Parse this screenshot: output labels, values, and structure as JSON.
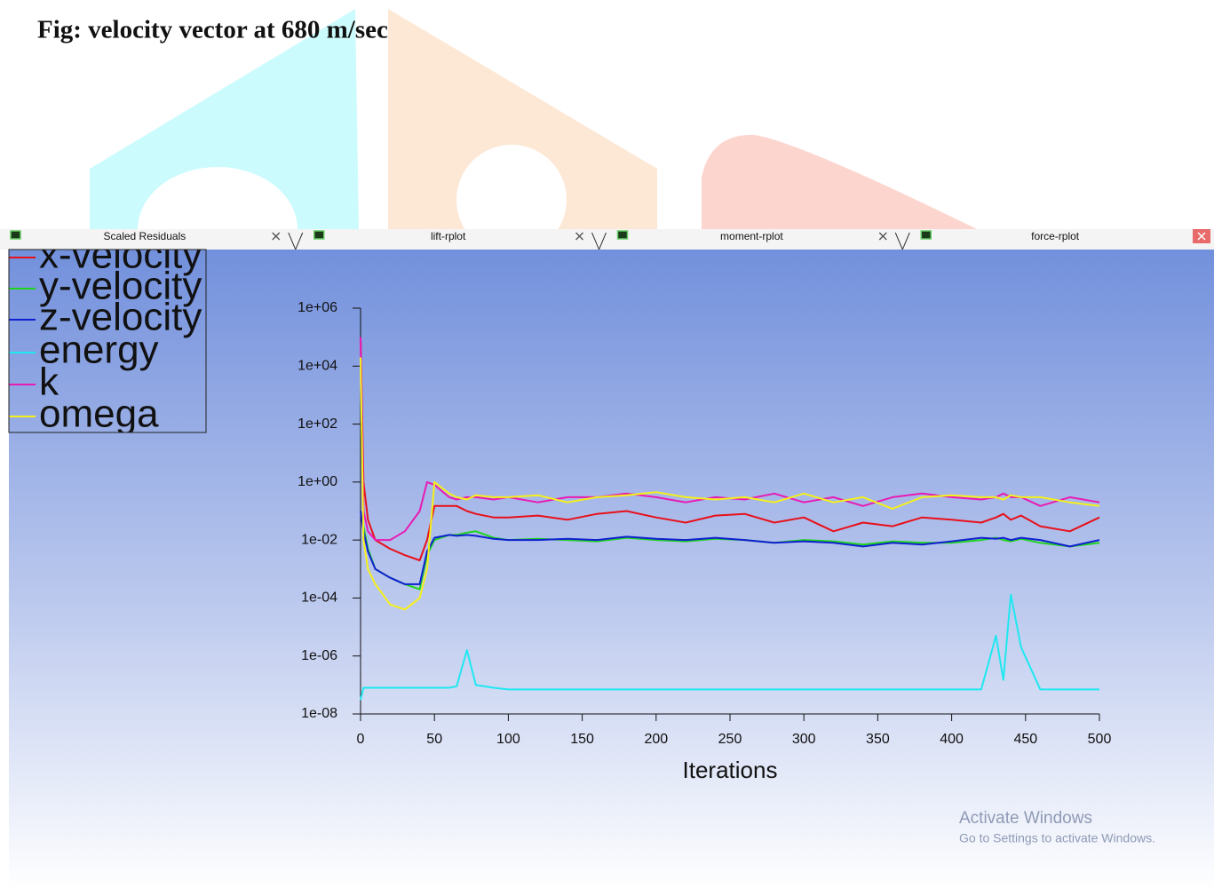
{
  "caption": "Fig: velocity vector at 680 m/sec",
  "tabs": [
    "Scaled Residuals",
    "lift-rplot",
    "moment-rplot",
    "force-rplot"
  ],
  "watermark": {
    "title": "Activate Windows",
    "subtitle": "Go to Settings to activate Windows."
  },
  "chart_data": {
    "type": "line",
    "x_label": "Iterations",
    "ylog": true,
    "grid": false,
    "xlim": [
      0,
      500
    ],
    "xticks": [
      0,
      50,
      100,
      150,
      200,
      250,
      300,
      350,
      400,
      450,
      500
    ],
    "ylim": [
      1e-08,
      1000000
    ],
    "yticks": [
      {
        "value": 1e-08,
        "label": "1e-08"
      },
      {
        "value": 1e-06,
        "label": "1e-06"
      },
      {
        "value": 0.0001,
        "label": "1e-04"
      },
      {
        "value": 0.01,
        "label": "1e-02"
      },
      {
        "value": 1,
        "label": "1e+00"
      },
      {
        "value": 100,
        "label": "1e+02"
      },
      {
        "value": 10000,
        "label": "1e+04"
      },
      {
        "value": 1000000,
        "label": "1e+06"
      }
    ],
    "x": [
      0,
      2,
      5,
      10,
      20,
      30,
      40,
      45,
      50,
      60,
      65,
      72,
      78,
      90,
      100,
      120,
      140,
      160,
      180,
      200,
      220,
      240,
      260,
      280,
      300,
      320,
      340,
      360,
      380,
      400,
      420,
      430,
      435,
      440,
      447,
      460,
      480,
      500
    ],
    "series": [
      {
        "name": "x-velocity",
        "color": "#e8101a",
        "values": [
          100000,
          1,
          0.05,
          0.01,
          0.005,
          0.003,
          0.002,
          0.01,
          0.15,
          0.15,
          0.15,
          0.1,
          0.08,
          0.06,
          0.06,
          0.07,
          0.05,
          0.08,
          0.1,
          0.06,
          0.04,
          0.07,
          0.08,
          0.04,
          0.06,
          0.02,
          0.04,
          0.03,
          0.06,
          0.05,
          0.04,
          0.06,
          0.08,
          0.05,
          0.07,
          0.03,
          0.02,
          0.06
        ]
      },
      {
        "name": "y-velocity",
        "color": "#1ed41e",
        "values": [
          0.1,
          0.03,
          0.005,
          0.001,
          0.0005,
          0.0003,
          0.0002,
          0.003,
          0.01,
          0.015,
          0.015,
          0.018,
          0.02,
          0.012,
          0.01,
          0.011,
          0.01,
          0.009,
          0.012,
          0.01,
          0.009,
          0.011,
          0.01,
          0.008,
          0.01,
          0.009,
          0.007,
          0.009,
          0.008,
          0.008,
          0.01,
          0.012,
          0.01,
          0.009,
          0.011,
          0.008,
          0.006,
          0.008
        ]
      },
      {
        "name": "z-velocity",
        "color": "#1020d0",
        "values": [
          0.1,
          0.02,
          0.004,
          0.001,
          0.0005,
          0.0003,
          0.0003,
          0.004,
          0.012,
          0.015,
          0.014,
          0.015,
          0.014,
          0.011,
          0.01,
          0.01,
          0.011,
          0.01,
          0.013,
          0.011,
          0.01,
          0.012,
          0.01,
          0.008,
          0.009,
          0.008,
          0.006,
          0.008,
          0.007,
          0.009,
          0.012,
          0.011,
          0.012,
          0.01,
          0.012,
          0.01,
          0.006,
          0.01
        ]
      },
      {
        "name": "energy",
        "color": "#1ee8f0",
        "values": [
          3e-08,
          8e-08,
          8e-08,
          8e-08,
          8e-08,
          8e-08,
          8e-08,
          8e-08,
          8e-08,
          8e-08,
          9e-08,
          1.6e-06,
          1e-07,
          8e-08,
          7e-08,
          7e-08,
          7e-08,
          7e-08,
          7e-08,
          7e-08,
          7e-08,
          7e-08,
          7e-08,
          7e-08,
          7e-08,
          7e-08,
          7e-08,
          7e-08,
          7e-08,
          7e-08,
          7e-08,
          5e-06,
          1.5e-07,
          0.00013,
          2e-06,
          7e-08,
          7e-08,
          7e-08
        ]
      },
      {
        "name": "k",
        "color": "#e81ab4",
        "values": [
          100000,
          0.1,
          0.02,
          0.01,
          0.01,
          0.02,
          0.1,
          1,
          0.8,
          0.3,
          0.25,
          0.3,
          0.3,
          0.25,
          0.3,
          0.2,
          0.3,
          0.3,
          0.4,
          0.3,
          0.2,
          0.3,
          0.25,
          0.4,
          0.2,
          0.3,
          0.15,
          0.3,
          0.4,
          0.3,
          0.25,
          0.3,
          0.4,
          0.3,
          0.3,
          0.15,
          0.3,
          0.2
        ]
      },
      {
        "name": "omega",
        "color": "#f5f01a",
        "values": [
          20000,
          0.01,
          0.001,
          0.0003,
          6e-05,
          4e-05,
          0.0001,
          0.001,
          1,
          0.4,
          0.3,
          0.25,
          0.35,
          0.3,
          0.3,
          0.35,
          0.2,
          0.3,
          0.35,
          0.45,
          0.3,
          0.25,
          0.3,
          0.2,
          0.4,
          0.2,
          0.3,
          0.12,
          0.3,
          0.35,
          0.3,
          0.3,
          0.25,
          0.35,
          0.3,
          0.3,
          0.2,
          0.15
        ]
      }
    ]
  }
}
